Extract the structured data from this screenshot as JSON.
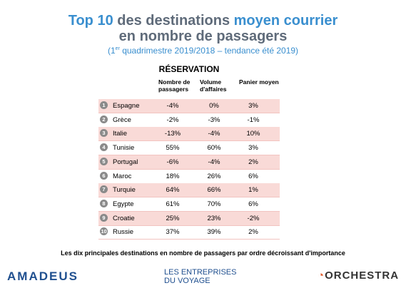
{
  "header": {
    "title_line1": [
      {
        "text": "Top 10",
        "style": "accent"
      },
      {
        "text": " des destinations ",
        "style": "plain"
      },
      {
        "text": "moyen courrier",
        "style": "accent"
      }
    ],
    "title_line2": "en nombre de passagers",
    "subtitle": {
      "before": "(1",
      "sup": "er",
      "after": " quadrimestre 2019/2018 – tendance été 2019)"
    }
  },
  "table": {
    "group_header": "RÉSERVATION",
    "columns": [
      "Nombre de passagers",
      "Volume d'affaires",
      "Panier moyen"
    ],
    "rows": [
      [
        "1",
        "Espagne",
        "-4%",
        "0%",
        "3%"
      ],
      [
        "2",
        "Grèce",
        "-2%",
        "-3%",
        "-1%"
      ],
      [
        "3",
        "Italie",
        "-13%",
        "-4%",
        "10%"
      ],
      [
        "4",
        "Tunisie",
        "55%",
        "60%",
        "3%"
      ],
      [
        "5",
        "Portugal",
        "-6%",
        "-4%",
        "2%"
      ],
      [
        "6",
        "Maroc",
        "18%",
        "26%",
        "6%"
      ],
      [
        "7",
        "Turquie",
        "64%",
        "66%",
        "1%"
      ],
      [
        "8",
        "Egypte",
        "61%",
        "70%",
        "6%"
      ],
      [
        "9",
        "Croatie",
        "25%",
        "23%",
        "-2%"
      ],
      [
        "10",
        "Russie",
        "37%",
        "39%",
        "2%"
      ]
    ]
  },
  "caption": "Les dix principales destinations en nombre de passagers par ordre décroissant d'importance",
  "logos": {
    "left": "amadeus",
    "center_line1": "LES ENTREPRISES",
    "center_line2": "DU VOYAGE",
    "right": "ORCHESTRA"
  }
}
